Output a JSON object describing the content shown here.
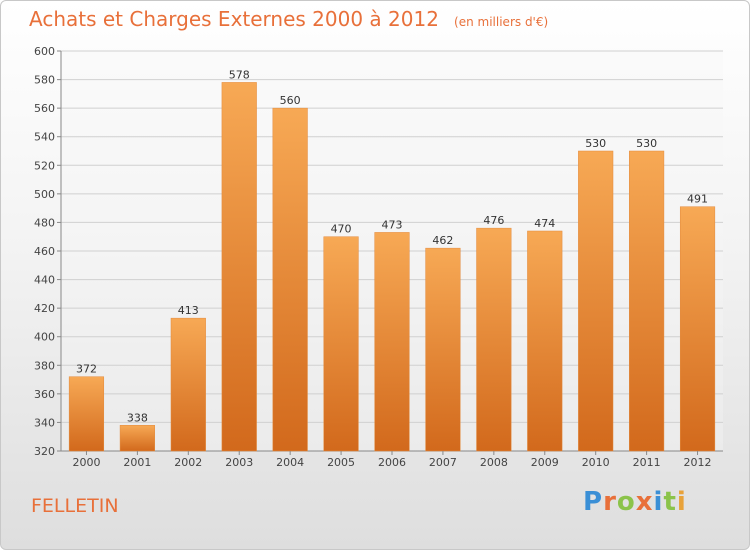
{
  "header": {
    "title": "Achats et Charges Externes 2000 à 2012",
    "unit": "(en milliers d'€)"
  },
  "footer": {
    "city": "FELLETIN",
    "logo_text": "Proxiti"
  },
  "colors": {
    "bar_light": "#f5a24e",
    "bar_dark": "#d46e1e",
    "accent": "#e8703a"
  },
  "chart_data": {
    "type": "bar",
    "title": "Achats et Charges Externes 2000 à 2012",
    "subtitle": "(en milliers d'€)",
    "categories": [
      "2000",
      "2001",
      "2002",
      "2003",
      "2004",
      "2005",
      "2006",
      "2007",
      "2008",
      "2009",
      "2010",
      "2011",
      "2012"
    ],
    "values": [
      372,
      338,
      413,
      578,
      560,
      470,
      473,
      462,
      476,
      474,
      530,
      530,
      491
    ],
    "ylim": [
      320,
      600
    ],
    "yticks": [
      320,
      340,
      360,
      380,
      400,
      420,
      440,
      460,
      480,
      500,
      520,
      540,
      560,
      580,
      600
    ],
    "grid": true,
    "legend": "none"
  }
}
